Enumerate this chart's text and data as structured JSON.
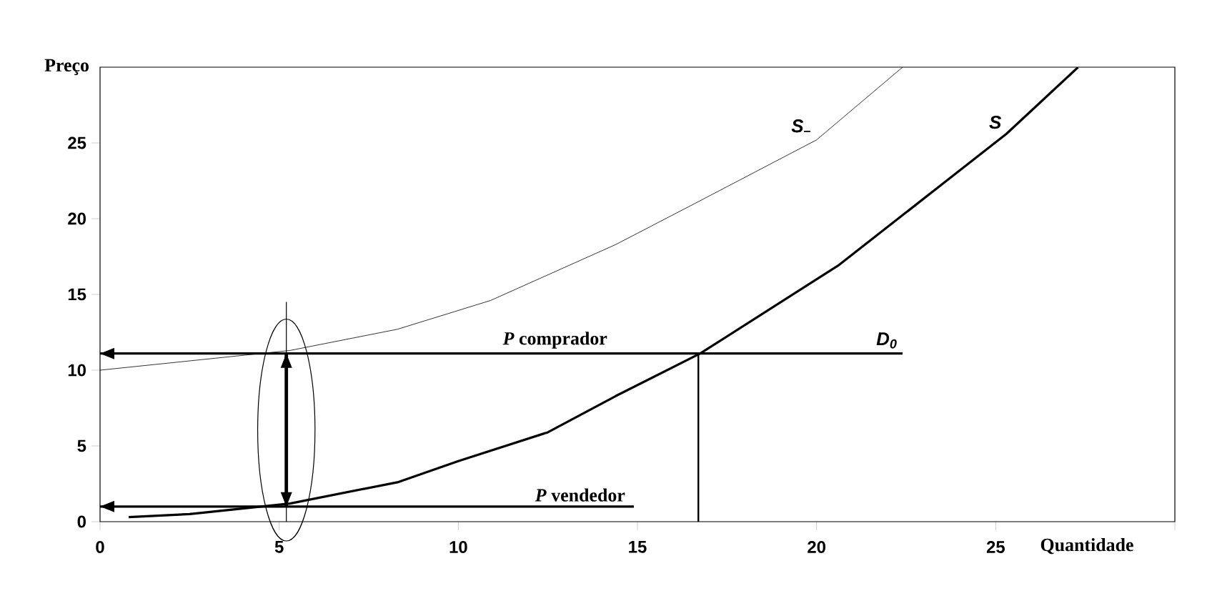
{
  "chart_data": {
    "type": "line",
    "xlabel": "Quantidade",
    "ylabel": "Preço",
    "xlim": [
      0,
      30
    ],
    "ylim": [
      0,
      30
    ],
    "xticks": [
      0,
      5,
      10,
      15,
      20,
      25,
      {
        "value": 30,
        "label": null
      }
    ],
    "yticks": [
      0,
      5,
      10,
      15,
      20,
      25
    ],
    "series": [
      {
        "name": "S",
        "color": "#000000",
        "x": [
          0.8,
          2.5,
          5.3,
          8.3,
          10,
          12.5,
          14.4,
          16.75,
          20.6,
          25.3,
          27.3
        ],
        "values": [
          0.3,
          0.5,
          1.2,
          2.6,
          4,
          5.9,
          8.3,
          11.1,
          16.9,
          25.6,
          30
        ]
      },
      {
        "name": "S$_{–}$",
        "color": "#000000",
        "x": [
          0,
          5.3,
          8.3,
          10.9,
          14.4,
          16.6,
          20,
          22.4
        ],
        "values": [
          10,
          11.3,
          12.7,
          14.6,
          18.3,
          21,
          25.2,
          30
        ]
      },
      {
        "name": "D$_{0}$",
        "color": "#000000",
        "x": [
          0,
          22.4
        ],
        "values": [
          11.1,
          11.1
        ]
      },
      {
        "color": "#000000",
        "x": [
          0,
          14.9
        ],
        "values": [
          1,
          1
        ]
      },
      {
        "color": "#000000",
        "x": [
          16.7,
          16.7
        ],
        "values": [
          0,
          11.1
        ]
      },
      {
        "color": "#000000",
        "x": [
          5.2,
          5.2
        ],
        "values": [
          0,
          14.5
        ]
      },
      {
        "color": "#000000",
        "x": [
          5.2,
          5.2
        ],
        "values": [
          1,
          11.1
        ]
      }
    ],
    "annotations": [
      {
        "text": "*P* comprador",
        "x": 12.7,
        "y": 11.1
      },
      {
        "text": "*P* vendedor",
        "x": 13.4,
        "y": 1
      }
    ]
  }
}
